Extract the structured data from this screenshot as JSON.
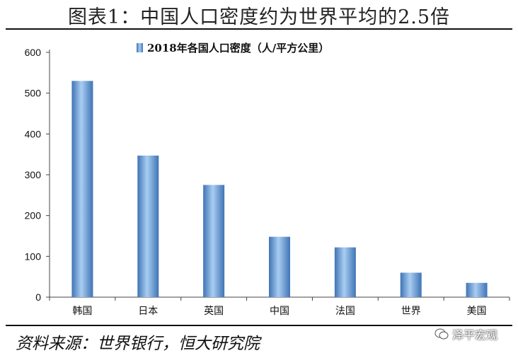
{
  "figure_title": "图表1：中国人口密度约为世界平均的2.5倍",
  "source": "资料来源：世界银行，恒大研究院",
  "watermark": "泽平宏观",
  "colors": {
    "bar": "#4f86c6",
    "bar_light": "#9cc3ec",
    "axis": "#444444"
  },
  "chart_data": {
    "type": "bar",
    "title": "2018年各国人口密度（人/平方公里）",
    "categories": [
      "韩国",
      "日本",
      "英国",
      "中国",
      "法国",
      "世界",
      "美国"
    ],
    "series": [
      {
        "name": "2018年各国人口密度（人/平方公里）",
        "values": [
          530,
          347,
          275,
          148,
          122,
          60,
          35
        ]
      }
    ],
    "ylim": [
      0,
      600
    ],
    "yticks": [
      0,
      100,
      200,
      300,
      400,
      500,
      600
    ],
    "legend": "top-center",
    "grid": false
  }
}
